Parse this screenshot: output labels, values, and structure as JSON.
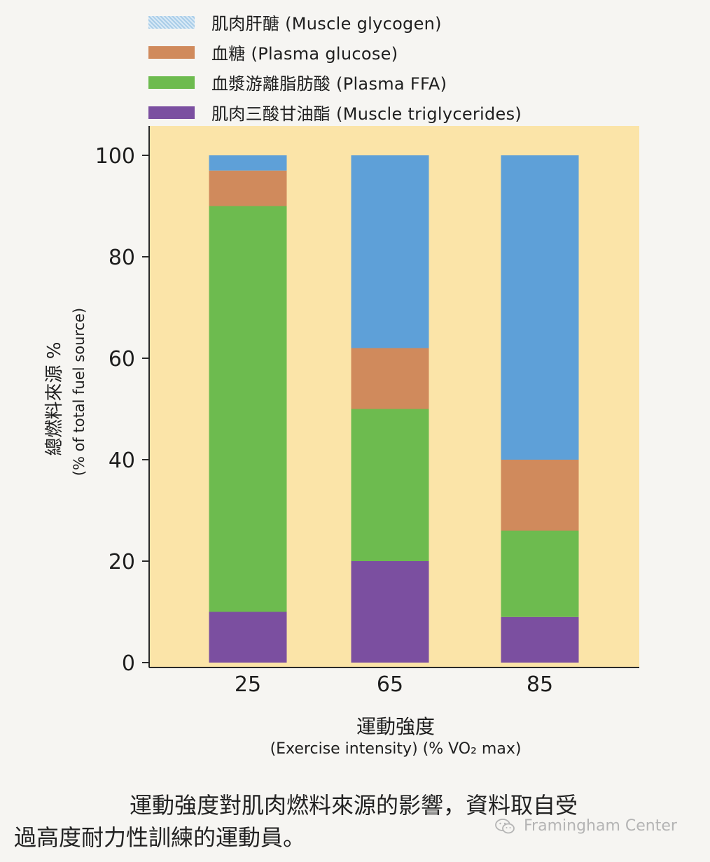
{
  "chart_data": {
    "type": "bar",
    "stacked": true,
    "categories": [
      "25",
      "65",
      "85"
    ],
    "series": [
      {
        "name": "肌肉三酸甘油酯 (Muscle triglycerides)",
        "values": [
          10,
          20,
          9
        ],
        "color": "#7b4fa0"
      },
      {
        "name": "血漿游離脂肪酸 (Plasma FFA)",
        "values": [
          80,
          30,
          17
        ],
        "color": "#6dbb4f"
      },
      {
        "name": "血糖 (Plasma glucose)",
        "values": [
          7,
          12,
          14
        ],
        "color": "#d08a5c"
      },
      {
        "name": "肌肉肝醣 (Muscle glycogen)",
        "values": [
          3,
          38,
          60
        ],
        "color": "#5ea0d8"
      }
    ],
    "legend_order": [
      3,
      2,
      1,
      0
    ],
    "ylim": [
      0,
      100
    ],
    "yticks": [
      "0",
      "20",
      "40",
      "60",
      "80",
      "100"
    ],
    "ylabel_cn": "總燃料來源 %",
    "ylabel_en": "(% of total fuel source)",
    "xlabel_cn": "運動強度",
    "xlabel_en": "(Exercise intensity) (% VO₂ max)",
    "plot_background": "#fbe4a8",
    "grid": false,
    "legend_position": "top-left"
  },
  "caption": {
    "line1": "運動強度對肌肉燃料來源的影響，資料取自受",
    "line2": "過高度耐力性訓練的運動員。"
  },
  "watermark": {
    "text": "Framingham Center",
    "icon": "wechat-icon"
  }
}
